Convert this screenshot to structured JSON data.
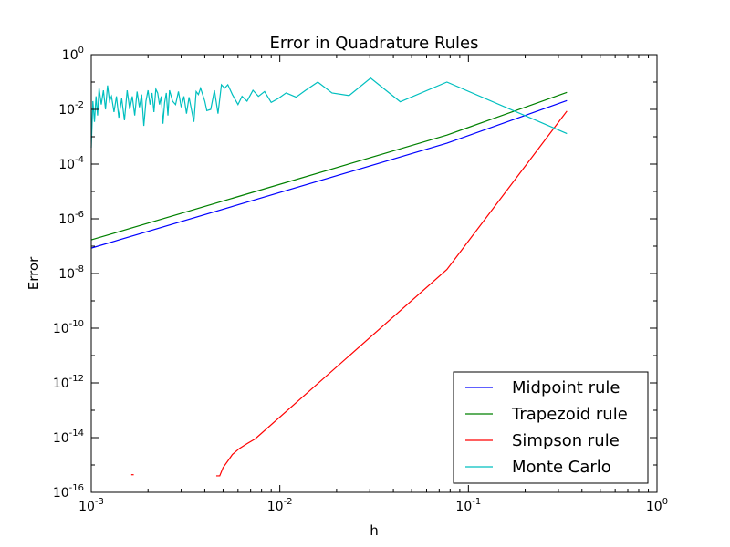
{
  "chart_data": {
    "type": "line",
    "title": "Error in Quadrature Rules",
    "xlabel": "h",
    "ylabel": "Error",
    "xscale": "log",
    "yscale": "log",
    "xlim": [
      0.001,
      1
    ],
    "ylim": [
      1e-16,
      1
    ],
    "grid": false,
    "legend_position": "lower-right",
    "x_ticks": [
      {
        "base": "10",
        "exp": "-3",
        "value": 0.001
      },
      {
        "base": "10",
        "exp": "-2",
        "value": 0.01
      },
      {
        "base": "10",
        "exp": "-1",
        "value": 0.1
      },
      {
        "base": "10",
        "exp": "0",
        "value": 1
      }
    ],
    "y_ticks": [
      {
        "base": "10",
        "exp": "0",
        "value": 1
      },
      {
        "base": "10",
        "exp": "-2",
        "value": 0.01
      },
      {
        "base": "10",
        "exp": "-4",
        "value": 0.0001
      },
      {
        "base": "10",
        "exp": "-6",
        "value": 1e-06
      },
      {
        "base": "10",
        "exp": "-8",
        "value": 1e-08
      },
      {
        "base": "10",
        "exp": "-10",
        "value": 1e-10
      },
      {
        "base": "10",
        "exp": "-12",
        "value": 1e-12
      },
      {
        "base": "10",
        "exp": "-14",
        "value": 1e-14
      },
      {
        "base": "10",
        "exp": "-16",
        "value": 1e-16
      }
    ],
    "series": [
      {
        "name": "Midpoint rule",
        "color": "#0000ff",
        "x": [
          0.333,
          0.0769,
          0.001
        ],
        "y": [
          0.021,
          0.00058,
          8.5e-08
        ]
      },
      {
        "name": "Trapezoid rule",
        "color": "#008000",
        "x": [
          0.333,
          0.0769,
          0.001
        ],
        "y": [
          0.042,
          0.00115,
          1.7e-07
        ]
      },
      {
        "name": "Simpson rule",
        "color": "#ff0000",
        "x": [
          0.333,
          0.0769,
          0.0074,
          0.0067,
          0.0061,
          0.0056,
          0.0053,
          0.005,
          0.0048,
          0.0046
        ],
        "y": [
          0.0087,
          1.4e-08,
          9e-15,
          6e-15,
          4e-15,
          2.4e-15,
          1.4e-15,
          8e-16,
          4e-16,
          4e-16
        ],
        "extra_segments": [
          {
            "x": [
              0.00163,
              0.00168
            ],
            "y": [
              4.4e-16,
              4.4e-16
            ]
          }
        ]
      },
      {
        "name": "Monte Carlo",
        "color": "#00bfbf",
        "x": [
          0.333,
          0.0769,
          0.0435,
          0.0303,
          0.0233,
          0.0189,
          0.0159,
          0.0137,
          0.0122,
          0.0108,
          0.0098,
          0.009,
          0.0083,
          0.0077,
          0.0072,
          0.0067,
          0.0063,
          0.006,
          0.0056,
          0.0053,
          0.0051,
          0.0049,
          0.0047,
          0.0045,
          0.0043,
          0.0041,
          0.004,
          0.0038,
          0.0037,
          0.0036,
          0.0035,
          0.0033,
          0.0032,
          0.0031,
          0.003,
          0.0029,
          0.0028,
          0.0027,
          0.0026,
          0.00255,
          0.0025,
          0.00245,
          0.0024,
          0.00235,
          0.0023,
          0.00225,
          0.0022,
          0.00215,
          0.0021,
          0.00205,
          0.002,
          0.00195,
          0.0019,
          0.00185,
          0.0018,
          0.00175,
          0.0017,
          0.00165,
          0.0016,
          0.00155,
          0.0015,
          0.00145,
          0.0014,
          0.00136,
          0.00132,
          0.00128,
          0.00125,
          0.00122,
          0.00119,
          0.00116,
          0.00113,
          0.0011,
          0.00108,
          0.00106,
          0.00104,
          0.00102,
          0.001
        ],
        "y": [
          0.0013,
          0.1,
          0.019,
          0.14,
          0.032,
          0.04,
          0.1,
          0.05,
          0.028,
          0.04,
          0.025,
          0.018,
          0.045,
          0.03,
          0.05,
          0.02,
          0.03,
          0.015,
          0.035,
          0.08,
          0.06,
          0.08,
          0.007,
          0.05,
          0.01,
          0.009,
          0.02,
          0.06,
          0.035,
          0.045,
          0.0035,
          0.028,
          0.007,
          0.03,
          0.012,
          0.045,
          0.015,
          0.02,
          0.05,
          0.006,
          0.04,
          0.018,
          0.003,
          0.03,
          0.015,
          0.04,
          0.055,
          0.008,
          0.04,
          0.015,
          0.05,
          0.02,
          0.0025,
          0.035,
          0.012,
          0.045,
          0.006,
          0.03,
          0.01,
          0.05,
          0.004,
          0.025,
          0.005,
          0.03,
          0.008,
          0.03,
          0.02,
          0.075,
          0.01,
          0.05,
          0.015,
          0.06,
          0.006,
          0.03,
          0.0035,
          0.02,
          0.0004
        ]
      }
    ]
  }
}
